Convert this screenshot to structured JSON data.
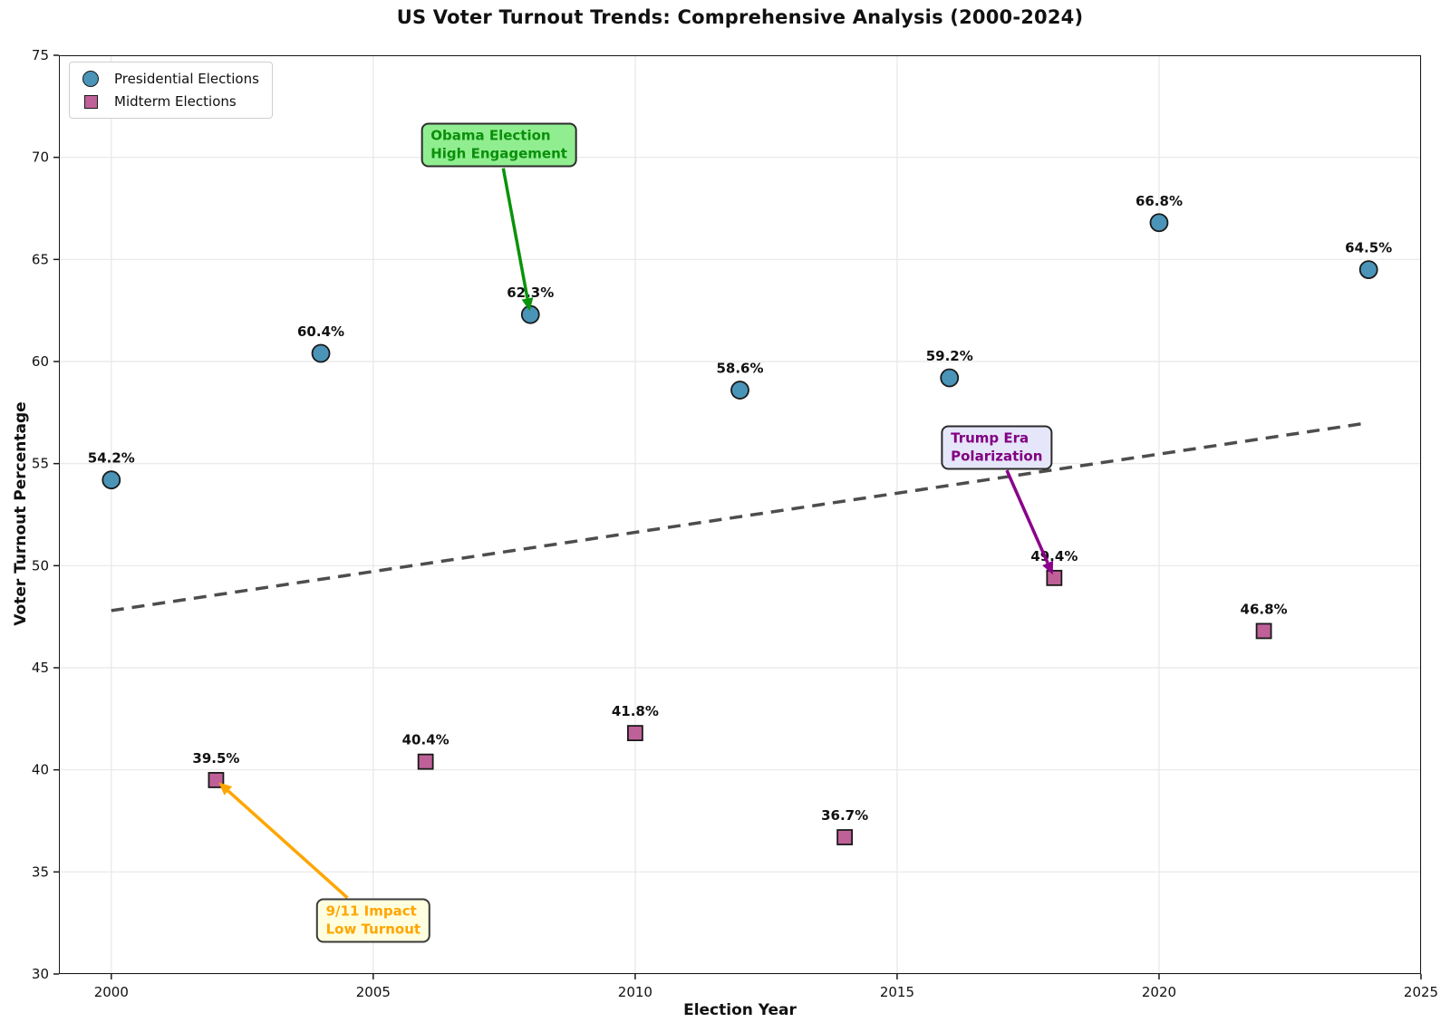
{
  "chart_data": {
    "type": "scatter",
    "title": "US Voter Turnout Trends: Comprehensive Analysis (2000-2024)",
    "xlabel": "Election Year",
    "ylabel": "Voter Turnout Percentage",
    "xlim": [
      1999,
      2025
    ],
    "ylim": [
      30,
      75
    ],
    "xticks": [
      2000,
      2005,
      2010,
      2015,
      2020,
      2025
    ],
    "yticks": [
      30,
      35,
      40,
      45,
      50,
      55,
      60,
      65,
      70,
      75
    ],
    "grid": true,
    "legend_position": "upper-left",
    "series": [
      {
        "name": "Presidential Elections",
        "marker": "circle",
        "color": "#4a94b8",
        "edge_color": "#1a1a1a",
        "points": [
          {
            "x": 2000,
            "y": 54.2,
            "label": "54.2%"
          },
          {
            "x": 2004,
            "y": 60.4,
            "label": "60.4%"
          },
          {
            "x": 2008,
            "y": 62.3,
            "label": "62.3%"
          },
          {
            "x": 2012,
            "y": 58.6,
            "label": "58.6%"
          },
          {
            "x": 2016,
            "y": 59.2,
            "label": "59.2%"
          },
          {
            "x": 2020,
            "y": 66.8,
            "label": "66.8%"
          },
          {
            "x": 2024,
            "y": 64.5,
            "label": "64.5%"
          }
        ]
      },
      {
        "name": "Midterm Elections",
        "marker": "square",
        "color": "#bf6198",
        "edge_color": "#1a1a1a",
        "points": [
          {
            "x": 2002,
            "y": 39.5,
            "label": "39.5%"
          },
          {
            "x": 2006,
            "y": 40.4,
            "label": "40.4%"
          },
          {
            "x": 2010,
            "y": 41.8,
            "label": "41.8%"
          },
          {
            "x": 2014,
            "y": 36.7,
            "label": "36.7%"
          },
          {
            "x": 2018,
            "y": 49.4,
            "label": "49.4%"
          },
          {
            "x": 2022,
            "y": 46.8,
            "label": "46.8%"
          }
        ]
      }
    ],
    "trend_line": {
      "style": "dashed",
      "color": "#4d4d4d",
      "x": [
        2000,
        2024
      ],
      "y": [
        47.8,
        57.0
      ]
    },
    "annotations": [
      {
        "id": "obama-election",
        "lines": [
          "Obama Election",
          "High Engagement"
        ],
        "box_center": {
          "x": 2007.4,
          "y": 70.6
        },
        "target": {
          "x": 2008,
          "y": 62.3
        },
        "bg_color": "#90ee90",
        "text_color": "#0b8f0b",
        "arrow_color": "#0a930a",
        "border_color": "#2b2b2b"
      },
      {
        "id": "trump-era",
        "lines": [
          "Trump Era",
          "Polarization"
        ],
        "box_center": {
          "x": 2016.9,
          "y": 55.8
        },
        "target": {
          "x": 2018,
          "y": 49.4
        },
        "bg_color": "#e6e6fa",
        "text_color": "#800080",
        "arrow_color": "#8b008b",
        "border_color": "#2b2b2b"
      },
      {
        "id": "nine-eleven",
        "lines": [
          "9/11 Impact",
          "Low Turnout"
        ],
        "box_center": {
          "x": 2005.0,
          "y": 32.6
        },
        "target": {
          "x": 2002,
          "y": 39.5
        },
        "bg_color": "#ffffe0",
        "text_color": "#ffa500",
        "arrow_color": "#ffa500",
        "border_color": "#3a3a3a"
      }
    ]
  }
}
